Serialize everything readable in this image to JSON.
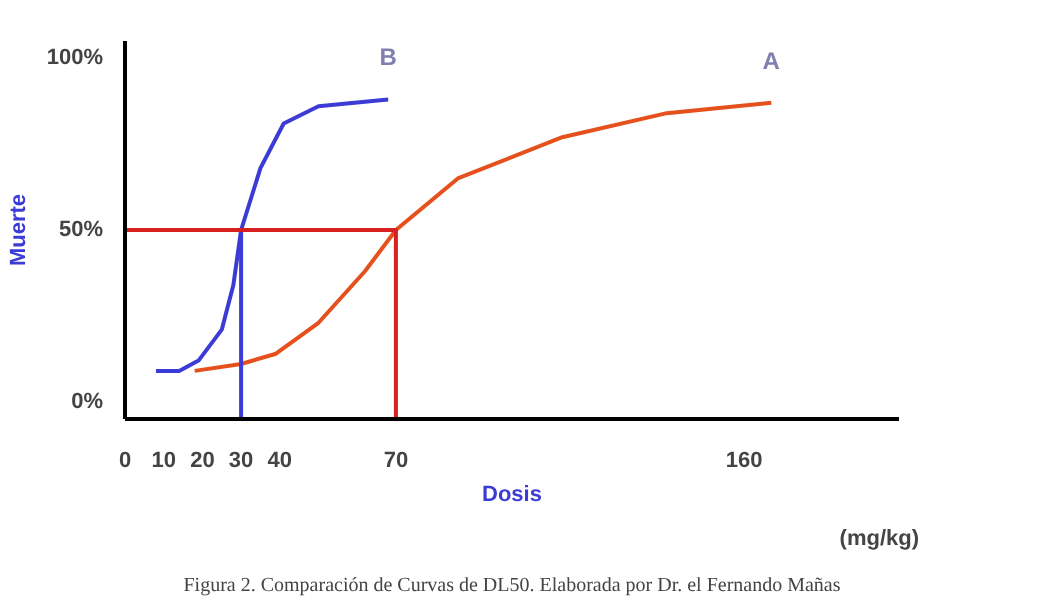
{
  "chart_data": {
    "type": "line",
    "xlabel": "Dosis",
    "ylabel": "Muerte",
    "annotations": [
      "(mg/kg)",
      "Figura 2. Comparación de Curvas de DL50. Elaborada por Dr. el Fernando Mañas"
    ],
    "xlim": [
      0,
      200
    ],
    "ylim": [
      -5,
      105
    ],
    "xticks": [
      0,
      10,
      20,
      30,
      40,
      70,
      160
    ],
    "yticks": [
      {
        "value": 0,
        "label": "0%"
      },
      {
        "value": 50,
        "label": "50%"
      },
      {
        "value": 100,
        "label": "100%"
      }
    ],
    "grid": false,
    "marker": "none",
    "line_style": "solid",
    "series": [
      {
        "name": "B",
        "color": "#3b3bd6",
        "x": [
          8,
          14,
          19,
          25,
          28,
          30,
          35,
          41,
          50,
          68
        ],
        "values": [
          9,
          9,
          12,
          21,
          34,
          50,
          68,
          81,
          86,
          88
        ]
      },
      {
        "name": "A",
        "color": "#e5501c",
        "x": [
          18,
          30,
          39,
          50,
          62,
          70,
          86,
          113,
          140,
          167
        ],
        "values": [
          9,
          11,
          14,
          23,
          38,
          50,
          65,
          77,
          84,
          87
        ]
      },
      {
        "color": "#3b3bd6",
        "x": [
          30,
          30
        ],
        "values": [
          50,
          -5
        ]
      },
      {
        "color": "#d92020",
        "x": [
          0,
          70,
          70
        ],
        "values": [
          50,
          50,
          -5
        ]
      }
    ]
  }
}
